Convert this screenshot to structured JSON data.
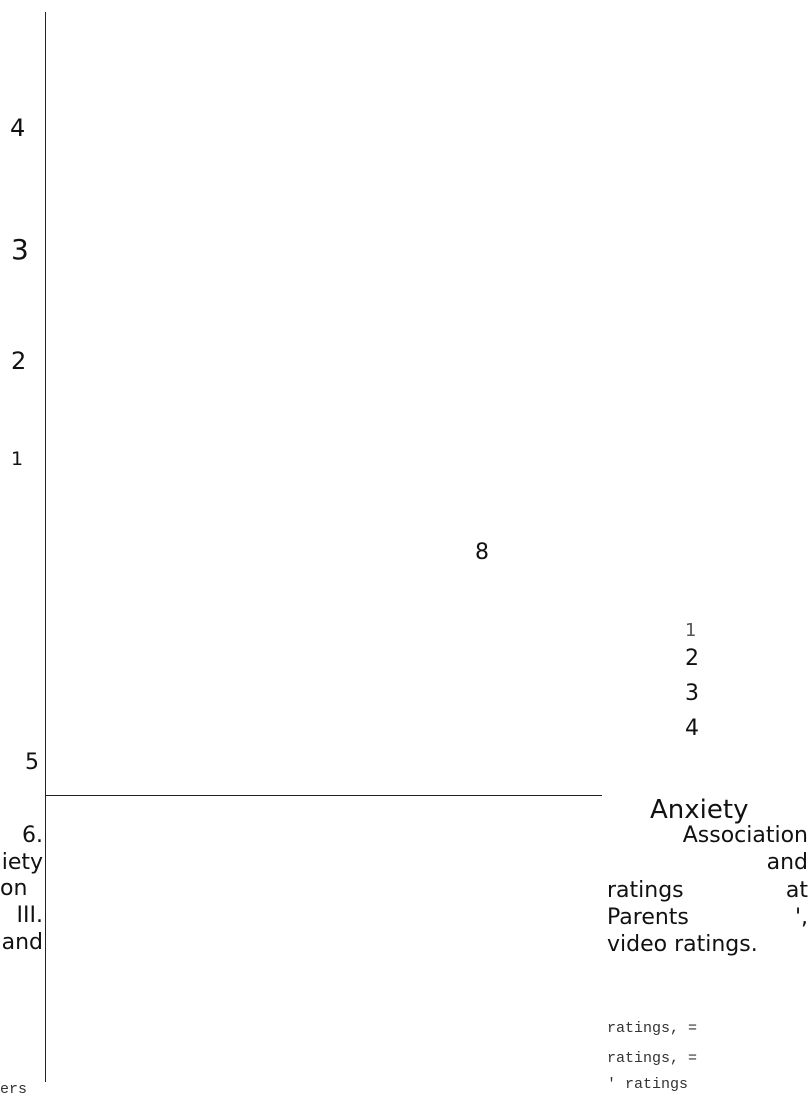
{
  "left_axis": {
    "ticks": [
      "4",
      "3",
      "2",
      "1"
    ],
    "bottom_label": "5"
  },
  "center_label": "8",
  "right_scale": {
    "ticks": [
      "1",
      "2",
      "3",
      "4"
    ]
  },
  "heading": "Anxiety",
  "left_column_fragments": [
    "6.",
    "iety",
    "on",
    "III.",
    "and",
    "ers"
  ],
  "right_column_fragments": {
    "line1": "Association",
    "line2": "and",
    "line3_a": "ratings",
    "line3_b": "at",
    "line4_a": "Parents",
    "line4_b": "',",
    "line5": "video ratings.",
    "mono1": "ratings, =",
    "mono2": "ratings, =",
    "mono3": "' ratings"
  }
}
